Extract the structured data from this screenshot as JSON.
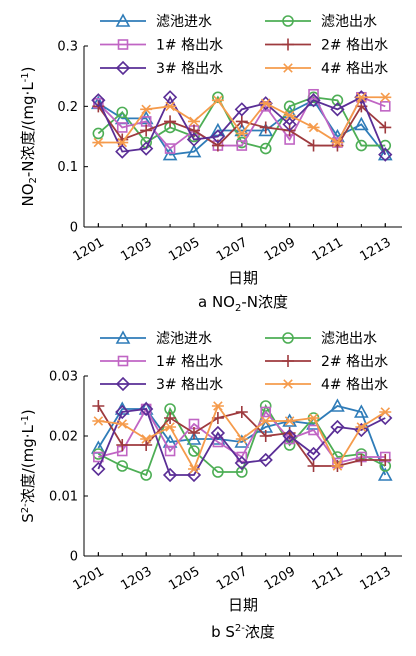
{
  "colors": {
    "s1": "#2F7CB8",
    "s2": "#4DAE55",
    "s3": "#C065C4",
    "s4": "#9E3A3E",
    "s5": "#5A2E96",
    "s6": "#F59B4C"
  },
  "chart_data": [
    {
      "type": "line",
      "caption": "a NO2-N浓度",
      "caption_parts": [
        "a NO",
        "2",
        "-N浓度"
      ],
      "xlabel": "日期",
      "ylabel": "NO2-N浓度/(mg·L-1)",
      "ylabel_parts": [
        "NO",
        "2",
        "-N浓度/(mg·L",
        "-1",
        ")"
      ],
      "ylim": [
        0,
        0.3
      ],
      "yticks": [
        0,
        0.1,
        0.2,
        0.3
      ],
      "ytick_labels": [
        "0",
        "0.1",
        "0.2",
        "0.3"
      ],
      "xticks": [
        1201,
        1203,
        1205,
        1207,
        1209,
        1211,
        1213
      ],
      "xtick_labels": [
        "1201",
        "1203",
        "1205",
        "1207",
        "1209",
        "1211",
        "1213"
      ],
      "xlim": [
        1200.4,
        1213.7
      ],
      "x": [
        1201,
        1202,
        1203,
        1204,
        1205,
        1206,
        1207,
        1208,
        1209,
        1210,
        1211,
        1212,
        1213
      ],
      "series": [
        {
          "name": "滤池进水",
          "marker": "triangle",
          "color_key": "s1",
          "values": [
            0.205,
            0.18,
            0.18,
            0.12,
            0.125,
            0.16,
            0.16,
            0.16,
            0.19,
            0.21,
            0.15,
            0.17,
            0.12
          ]
        },
        {
          "name": "滤池出水",
          "marker": "circle",
          "color_key": "s2",
          "values": [
            0.155,
            0.19,
            0.14,
            0.165,
            0.15,
            0.215,
            0.14,
            0.13,
            0.2,
            0.215,
            0.21,
            0.135,
            0.135
          ]
        },
        {
          "name": "1# 格出水",
          "marker": "square",
          "color_key": "s3",
          "values": [
            0.205,
            0.165,
            0.175,
            0.13,
            0.16,
            0.135,
            0.135,
            0.2,
            0.145,
            0.22,
            0.14,
            0.215,
            0.2
          ]
        },
        {
          "name": "2# 格出水",
          "marker": "plus",
          "color_key": "s4",
          "values": [
            0.2,
            0.145,
            0.16,
            0.175,
            0.16,
            0.135,
            0.175,
            0.165,
            0.16,
            0.135,
            0.135,
            0.2,
            0.165
          ]
        },
        {
          "name": "3# 格出水",
          "marker": "diamond",
          "color_key": "s5",
          "values": [
            0.21,
            0.125,
            0.13,
            0.215,
            0.145,
            0.15,
            0.195,
            0.205,
            0.17,
            0.21,
            0.195,
            0.215,
            0.12
          ]
        },
        {
          "name": "4# 格出水",
          "marker": "asterisk",
          "color_key": "s6",
          "values": [
            0.14,
            0.14,
            0.195,
            0.2,
            0.175,
            0.21,
            0.155,
            0.205,
            0.185,
            0.165,
            0.14,
            0.215,
            0.215
          ]
        }
      ]
    },
    {
      "type": "line",
      "caption": "b S2-浓度",
      "caption_parts": [
        "b S",
        "2-",
        "浓度"
      ],
      "xlabel": "日期",
      "ylabel": "S2-浓度/(mg·L-1)",
      "ylabel_parts": [
        "S",
        "2-",
        "浓度/(mg·L",
        "-1",
        ")"
      ],
      "ylim": [
        0,
        0.03
      ],
      "yticks": [
        0,
        0.01,
        0.02,
        0.03
      ],
      "ytick_labels": [
        "0",
        "0.01",
        "0.02",
        "0.03"
      ],
      "xticks": [
        1201,
        1203,
        1205,
        1207,
        1209,
        1211,
        1213
      ],
      "xtick_labels": [
        "1201",
        "1203",
        "1205",
        "1207",
        "1209",
        "1211",
        "1213"
      ],
      "xlim": [
        1200.4,
        1213.7
      ],
      "x": [
        1201,
        1202,
        1203,
        1204,
        1205,
        1206,
        1207,
        1208,
        1209,
        1210,
        1211,
        1212,
        1213
      ],
      "series": [
        {
          "name": "滤池进水",
          "marker": "triangle",
          "color_key": "s1",
          "values": [
            0.018,
            0.0245,
            0.0245,
            0.019,
            0.0195,
            0.0195,
            0.019,
            0.0215,
            0.0225,
            0.022,
            0.025,
            0.024,
            0.0135
          ]
        },
        {
          "name": "滤池出水",
          "marker": "circle",
          "color_key": "s2",
          "values": [
            0.017,
            0.015,
            0.0135,
            0.0245,
            0.0175,
            0.014,
            0.014,
            0.025,
            0.0185,
            0.023,
            0.0165,
            0.017,
            0.015
          ]
        },
        {
          "name": "1# 格出水",
          "marker": "square",
          "color_key": "s3",
          "values": [
            0.0165,
            0.0175,
            0.0245,
            0.0175,
            0.022,
            0.019,
            0.0165,
            0.024,
            0.0195,
            0.021,
            0.0155,
            0.0165,
            0.0165
          ]
        },
        {
          "name": "2# 格出水",
          "marker": "plus",
          "color_key": "s4",
          "values": [
            0.025,
            0.0185,
            0.0185,
            0.023,
            0.0205,
            0.023,
            0.024,
            0.02,
            0.0205,
            0.015,
            0.015,
            0.016,
            0.016
          ]
        },
        {
          "name": "3# 格出水",
          "marker": "diamond",
          "color_key": "s5",
          "values": [
            0.0145,
            0.024,
            0.0245,
            0.0135,
            0.0135,
            0.0205,
            0.0155,
            0.016,
            0.02,
            0.017,
            0.0215,
            0.021,
            0.023
          ]
        },
        {
          "name": "4# 格出水",
          "marker": "asterisk",
          "color_key": "s6",
          "values": [
            0.0225,
            0.022,
            0.0195,
            0.0215,
            0.0145,
            0.025,
            0.0195,
            0.0225,
            0.0225,
            0.023,
            0.015,
            0.0215,
            0.024
          ]
        }
      ]
    }
  ]
}
